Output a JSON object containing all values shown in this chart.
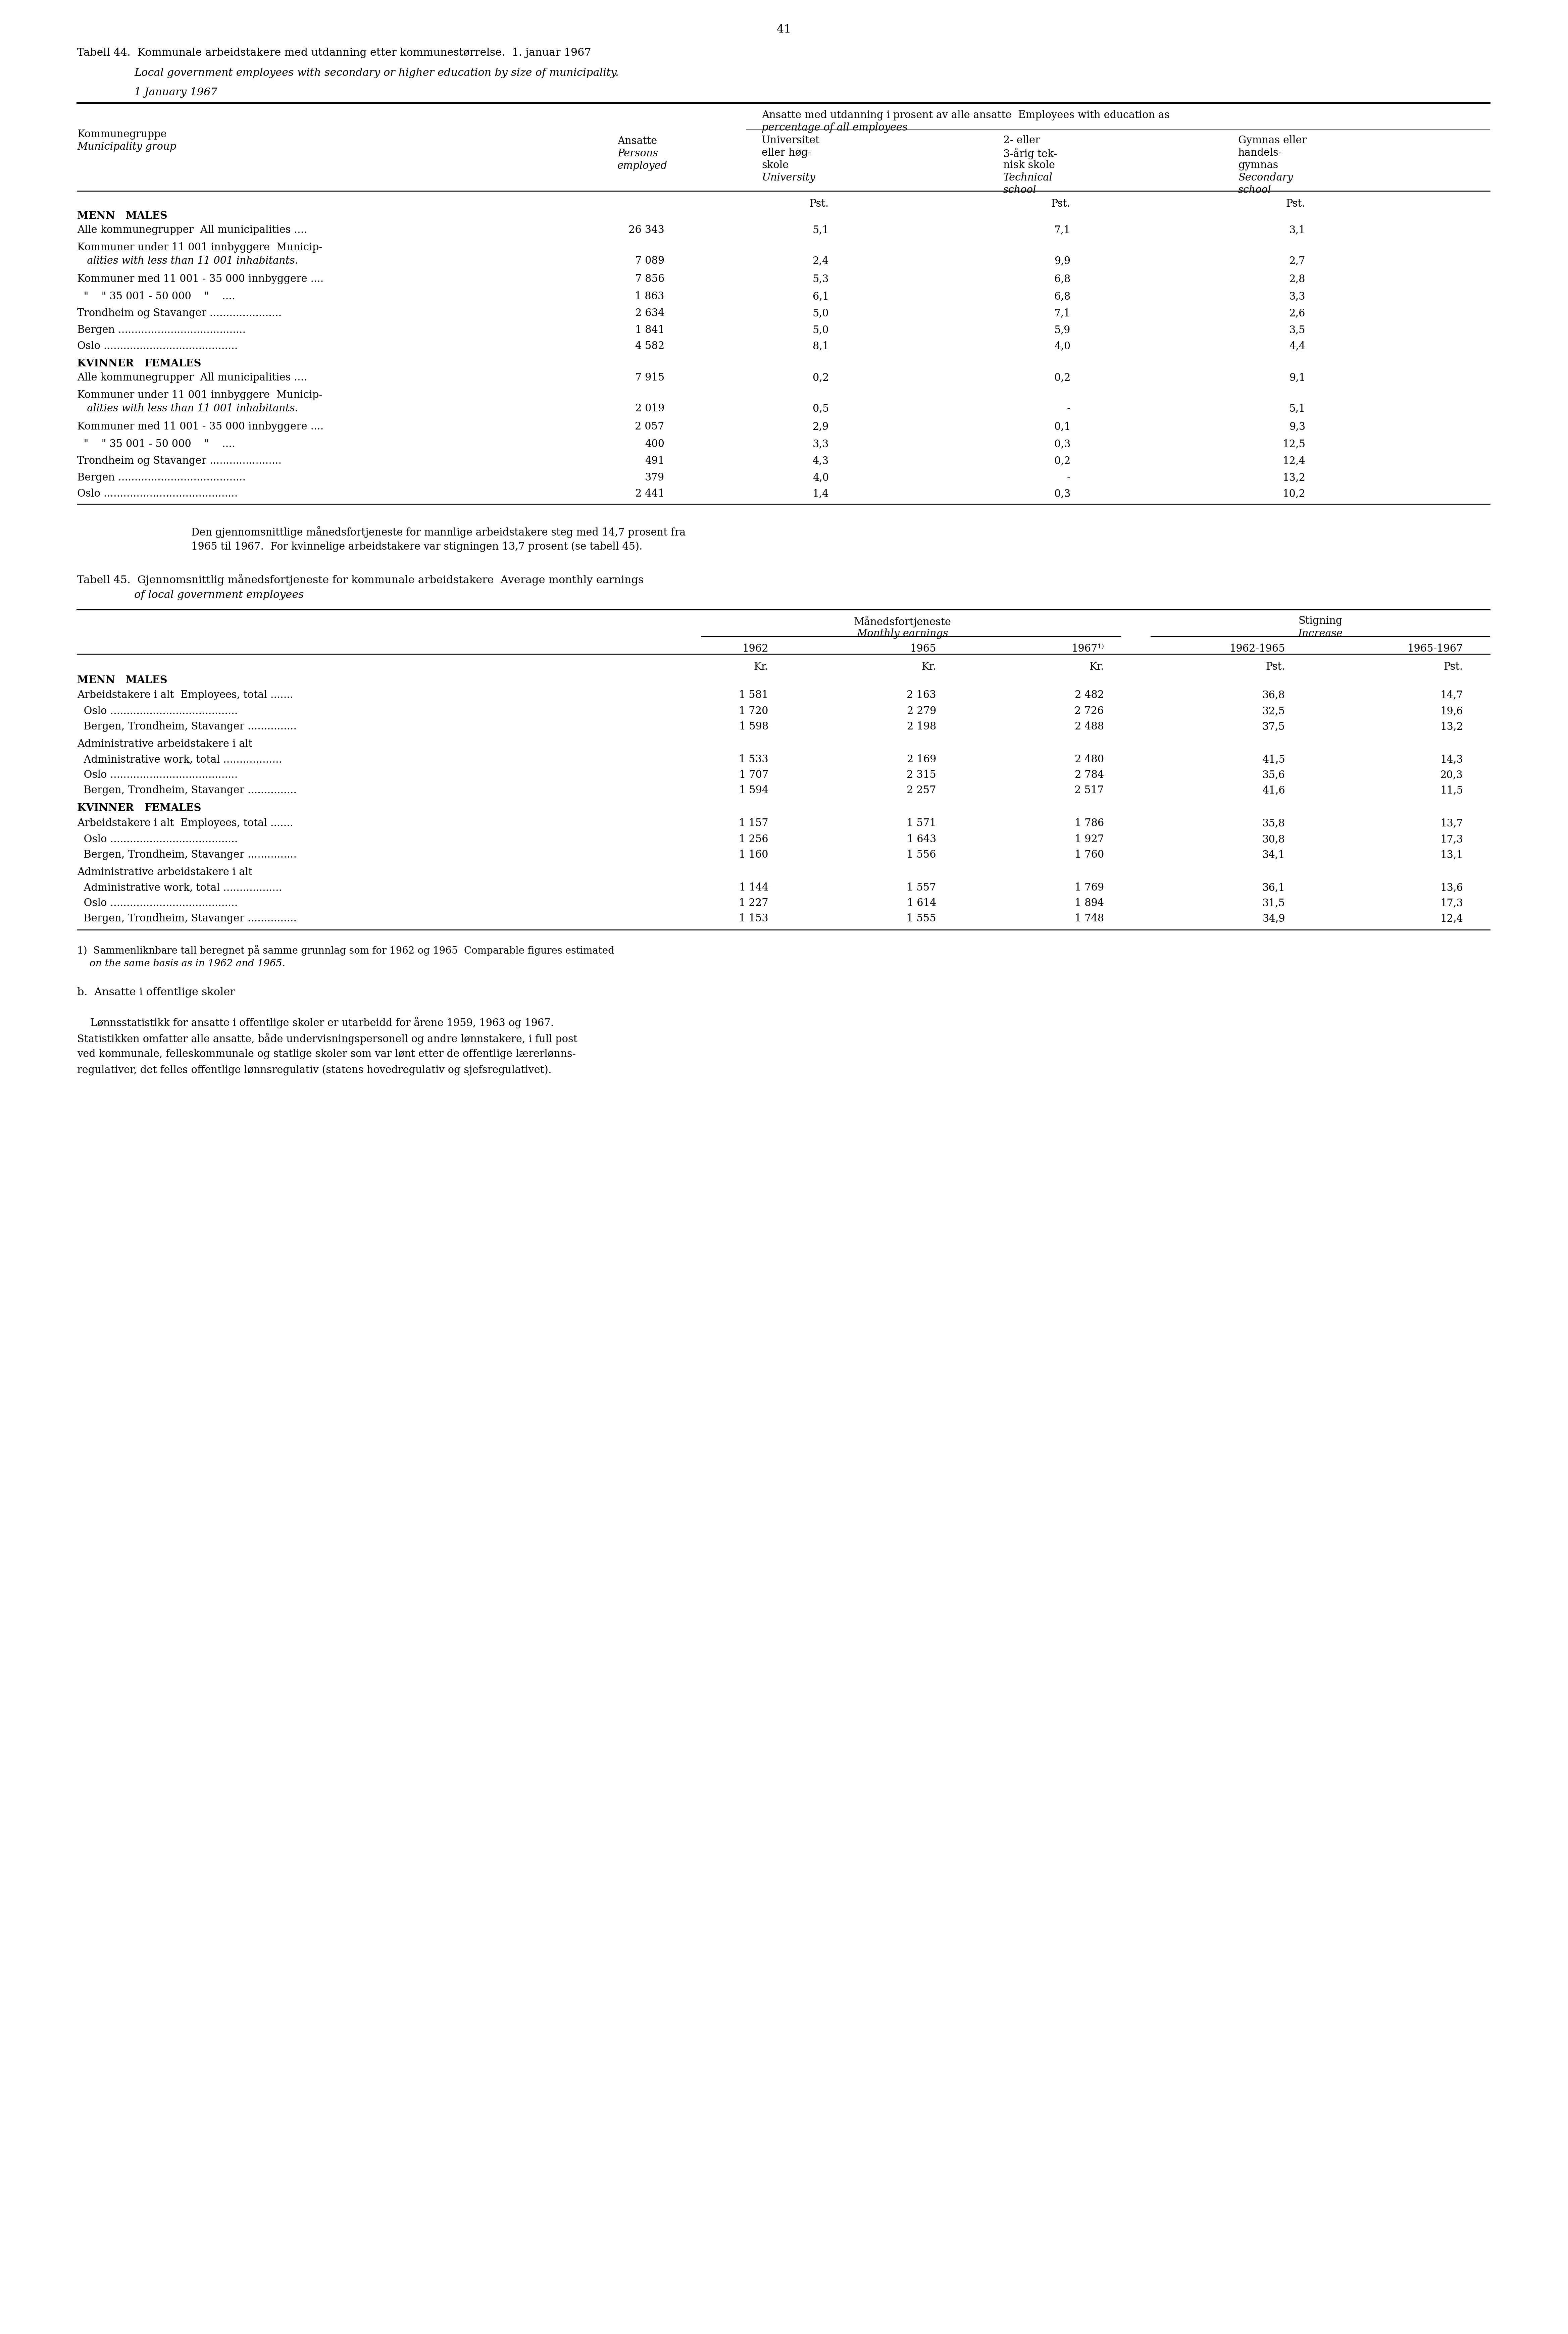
{
  "page_number": "41",
  "table44_title_no": "Tabell 44.  Kommunale arbeidstakere med utdanning etter kommunestørrelse.  1. januar 1967",
  "table44_title_en": "Local government employees with secondary or higher education by size of municipality.",
  "table44_title_en2": "1 January 1967",
  "table44_header_left1": "Kommunegruppe",
  "table44_header_left2": "Municipality group",
  "table44_header_mid1": "Ansatte",
  "table44_header_mid2": "Persons",
  "table44_header_mid3": "employed",
  "table44_header_right_span": "Ansatte med utdanning i prosent av alle ansatte  Employees with education as",
  "table44_header_right_span2": "percentage of all employees",
  "table44_col1_h1": "Universitet",
  "table44_col1_h2": "eller høg-",
  "table44_col1_h3": "skole",
  "table44_col1_h4": "University",
  "table44_col2_h1": "2- eller",
  "table44_col2_h2": "3-årig tek-",
  "table44_col2_h3": "nisk skole",
  "table44_col2_h4": "Technical",
  "table44_col2_h5": "school",
  "table44_col3_h1": "Gymnas eller",
  "table44_col3_h2": "handels-",
  "table44_col3_h3": "gymnas",
  "table44_col3_h4": "Secondary",
  "table44_col3_h5": "school",
  "table44_pst": "Pst.",
  "table44_menn": "MENN   MALES",
  "table44_data": [
    {
      "label": "Alle kommunegrupper  All municipalities ....",
      "ansatte": "26 343",
      "col1": "5,1",
      "col2": "7,1",
      "col3": "3,1",
      "italic": false
    },
    {
      "label": "Kommuner under 11 001 innbyggere  Municip-",
      "ansatte": "",
      "col1": "",
      "col2": "",
      "col3": "",
      "italic": false
    },
    {
      "label": "   alities with less than 11 001 inhabitants.",
      "ansatte": "7 089",
      "col1": "2,4",
      "col2": "9,9",
      "col3": "2,7",
      "italic": true
    },
    {
      "label": "Kommuner med 11 001 - 35 000 innbyggere ....",
      "ansatte": "7 856",
      "col1": "5,3",
      "col2": "6,8",
      "col3": "2,8",
      "italic": false
    },
    {
      "label": "  \"    \" 35 001 - 50 000    \"    ....",
      "ansatte": "1 863",
      "col1": "6,1",
      "col2": "6,8",
      "col3": "3,3",
      "italic": false
    },
    {
      "label": "Trondheim og Stavanger ......................",
      "ansatte": "2 634",
      "col1": "5,0",
      "col2": "7,1",
      "col3": "2,6",
      "italic": false
    },
    {
      "label": "Bergen .......................................",
      "ansatte": "1 841",
      "col1": "5,0",
      "col2": "5,9",
      "col3": "3,5",
      "italic": false
    },
    {
      "label": "Oslo .........................................",
      "ansatte": "4 582",
      "col1": "8,1",
      "col2": "4,0",
      "col3": "4,4",
      "italic": false
    }
  ],
  "table44_kvinner": "KVINNER   FEMALES",
  "table44_data2": [
    {
      "label": "Alle kommunegrupper  All municipalities ....",
      "ansatte": "7 915",
      "col1": "0,2",
      "col2": "0,2",
      "col3": "9,1",
      "italic": false
    },
    {
      "label": "Kommuner under 11 001 innbyggere  Municip-",
      "ansatte": "",
      "col1": "",
      "col2": "",
      "col3": "",
      "italic": false
    },
    {
      "label": "   alities with less than 11 001 inhabitants.",
      "ansatte": "2 019",
      "col1": "0,5",
      "col2": "-",
      "col3": "5,1",
      "italic": true
    },
    {
      "label": "Kommuner med 11 001 - 35 000 innbyggere ....",
      "ansatte": "2 057",
      "col1": "2,9",
      "col2": "0,1",
      "col3": "9,3",
      "italic": false
    },
    {
      "label": "  \"    \" 35 001 - 50 000    \"    ....",
      "ansatte": "400",
      "col1": "3,3",
      "col2": "0,3",
      "col3": "12,5",
      "italic": false
    },
    {
      "label": "Trondheim og Stavanger ......................",
      "ansatte": "491",
      "col1": "4,3",
      "col2": "0,2",
      "col3": "12,4",
      "italic": false
    },
    {
      "label": "Bergen .......................................",
      "ansatte": "379",
      "col1": "4,0",
      "col2": "-",
      "col3": "13,2",
      "italic": false
    },
    {
      "label": "Oslo .........................................",
      "ansatte": "2 441",
      "col1": "1,4",
      "col2": "0,3",
      "col3": "10,2",
      "italic": false
    }
  ],
  "para_text_line1": "Den gjennomsnittlige månedsfortjeneste for mannlige arbeidstakere steg med 14,7 prosent fra",
  "para_text_line2": "1965 til 1967.  For kvinnelige arbeidstakere var stigningen 13,7 prosent (se tabell 45).",
  "table45_title_no": "Tabell 45.  Gjennomsnittlig månedsfortjeneste for kommunale arbeidstakere  Average monthly earnings",
  "table45_title_en": "of local government employees",
  "table45_header_span1": "Månedsfortjeneste",
  "table45_header_span1_en": "Monthly earnings",
  "table45_header_span2": "Stigning",
  "table45_header_span2_en": "Increase",
  "table45_years": [
    "1962",
    "1965",
    "1967¹⁾",
    "1962-1965",
    "1965-1967"
  ],
  "table45_units": [
    "Kr.",
    "Kr.",
    "Kr.",
    "Pst.",
    "Pst."
  ],
  "table45_menn": "MENN   MALES",
  "table45_data": [
    {
      "label": "Arbeidstakere i alt  Employees, total .......",
      "v1": "1 581",
      "v2": "2 163",
      "v3": "2 482",
      "v4": "36,8",
      "v5": "14,7"
    },
    {
      "label": "  Oslo .......................................",
      "v1": "1 720",
      "v2": "2 279",
      "v3": "2 726",
      "v4": "32,5",
      "v5": "19,6"
    },
    {
      "label": "  Bergen, Trondheim, Stavanger ...............",
      "v1": "1 598",
      "v2": "2 198",
      "v3": "2 488",
      "v4": "37,5",
      "v5": "13,2"
    },
    {
      "label": "Administrative arbeidstakere i alt",
      "v1": "",
      "v2": "",
      "v3": "",
      "v4": "",
      "v5": ""
    },
    {
      "label": "  Administrative work, total ..................",
      "v1": "1 533",
      "v2": "2 169",
      "v3": "2 480",
      "v4": "41,5",
      "v5": "14,3"
    },
    {
      "label": "  Oslo .......................................",
      "v1": "1 707",
      "v2": "2 315",
      "v3": "2 784",
      "v4": "35,6",
      "v5": "20,3"
    },
    {
      "label": "  Bergen, Trondheim, Stavanger ...............",
      "v1": "1 594",
      "v2": "2 257",
      "v3": "2 517",
      "v4": "41,6",
      "v5": "11,5"
    }
  ],
  "table45_kvinner": "KVINNER   FEMALES",
  "table45_data2": [
    {
      "label": "Arbeidstakere i alt  Employees, total .......",
      "v1": "1 157",
      "v2": "1 571",
      "v3": "1 786",
      "v4": "35,8",
      "v5": "13,7"
    },
    {
      "label": "  Oslo .......................................",
      "v1": "1 256",
      "v2": "1 643",
      "v3": "1 927",
      "v4": "30,8",
      "v5": "17,3"
    },
    {
      "label": "  Bergen, Trondheim, Stavanger ...............",
      "v1": "1 160",
      "v2": "1 556",
      "v3": "1 760",
      "v4": "34,1",
      "v5": "13,1"
    },
    {
      "label": "Administrative arbeidstakere i alt",
      "v1": "",
      "v2": "",
      "v3": "",
      "v4": "",
      "v5": ""
    },
    {
      "label": "  Administrative work, total ..................",
      "v1": "1 144",
      "v2": "1 557",
      "v3": "1 769",
      "v4": "36,1",
      "v5": "13,6"
    },
    {
      "label": "  Oslo .......................................",
      "v1": "1 227",
      "v2": "1 614",
      "v3": "1 894",
      "v4": "31,5",
      "v5": "17,3"
    },
    {
      "label": "  Bergen, Trondheim, Stavanger ...............",
      "v1": "1 153",
      "v2": "1 555",
      "v3": "1 748",
      "v4": "34,9",
      "v5": "12,4"
    }
  ],
  "footnote1": "1)  Sammenliknbare tall beregnet på samme grunnlag som for 1962 og 1965  Comparable figures estimated",
  "footnote2": "    on the same basis as in 1962 and 1965.",
  "section_b_title": "b.  Ansatte i offentlige skoler",
  "section_b_lines": [
    "    Lønnsstatistikk for ansatte i offentlige skoler er utarbeidd for årene 1959, 1963 og 1967.",
    "Statistikken omfatter alle ansatte, både undervisningspersonell og andre lønnstakere, i full post",
    "ved kommunale, felleskommunale og statlige skoler som var lønt etter de offentlige lærerlønns-",
    "regulativer, det felles offentlige lønnsregulativ (statens hovedregulativ og sjefsregulativet)."
  ]
}
